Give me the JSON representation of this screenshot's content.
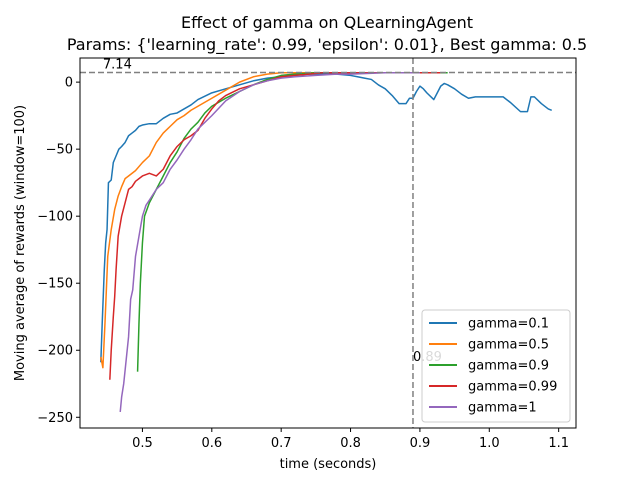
{
  "chart_data": {
    "type": "line",
    "title": "Effect of gamma on QLearningAgent",
    "subtitle": "Params: {'learning_rate': 0.99, 'epsilon': 0.01}, Best gamma: 0.5",
    "xlabel": "time (seconds)",
    "ylabel": "Moving average of rewards (window=100)",
    "xlim": [
      0.41,
      1.125
    ],
    "ylim": [
      -258,
      18
    ],
    "xticks": [
      0.5,
      0.6,
      0.7,
      0.8,
      0.9,
      1.0,
      1.1
    ],
    "xtick_labels": [
      "0.5",
      "0.6",
      "0.7",
      "0.8",
      "0.9",
      "1.0",
      "1.1"
    ],
    "yticks": [
      0,
      -50,
      -100,
      -150,
      -200,
      -250
    ],
    "ytick_labels": [
      "0",
      "−50",
      "−100",
      "−150",
      "−200",
      "−250"
    ],
    "grid": false,
    "legend_position": "lower right",
    "annotations": [
      {
        "type": "hline",
        "value": 7.14,
        "label": "7.14",
        "style": "dashed"
      },
      {
        "type": "vline",
        "value": 0.89,
        "label": "0.89",
        "style": "dashed"
      }
    ],
    "series": [
      {
        "name": "gamma=0.1",
        "color": "#1f77b4",
        "points": [
          [
            0.44,
            -209
          ],
          [
            0.442,
            -180
          ],
          [
            0.445,
            -140
          ],
          [
            0.447,
            -120
          ],
          [
            0.449,
            -110
          ],
          [
            0.451,
            -75
          ],
          [
            0.455,
            -73
          ],
          [
            0.458,
            -60
          ],
          [
            0.462,
            -55
          ],
          [
            0.466,
            -50
          ],
          [
            0.47,
            -48
          ],
          [
            0.475,
            -45
          ],
          [
            0.48,
            -40
          ],
          [
            0.485,
            -38
          ],
          [
            0.49,
            -36
          ],
          [
            0.495,
            -33
          ],
          [
            0.5,
            -32
          ],
          [
            0.51,
            -31
          ],
          [
            0.52,
            -31
          ],
          [
            0.53,
            -27
          ],
          [
            0.54,
            -24
          ],
          [
            0.55,
            -23
          ],
          [
            0.56,
            -20
          ],
          [
            0.57,
            -17
          ],
          [
            0.58,
            -13
          ],
          [
            0.6,
            -8
          ],
          [
            0.62,
            -5
          ],
          [
            0.64,
            -2
          ],
          [
            0.66,
            1
          ],
          [
            0.68,
            3
          ],
          [
            0.7,
            4
          ],
          [
            0.72,
            5
          ],
          [
            0.74,
            6
          ],
          [
            0.76,
            6
          ],
          [
            0.78,
            6
          ],
          [
            0.8,
            5
          ],
          [
            0.81,
            4
          ],
          [
            0.82,
            3
          ],
          [
            0.83,
            2
          ],
          [
            0.84,
            -2
          ],
          [
            0.85,
            -5
          ],
          [
            0.86,
            -10
          ],
          [
            0.87,
            -16
          ],
          [
            0.875,
            -16
          ],
          [
            0.88,
            -16
          ],
          [
            0.885,
            -12
          ],
          [
            0.89,
            -12
          ],
          [
            0.895,
            -7
          ],
          [
            0.9,
            -3
          ],
          [
            0.905,
            -5
          ],
          [
            0.91,
            -8
          ],
          [
            0.92,
            -13
          ],
          [
            0.925,
            -8
          ],
          [
            0.93,
            -3
          ],
          [
            0.935,
            -1
          ],
          [
            0.94,
            -2
          ],
          [
            0.95,
            -5
          ],
          [
            0.96,
            -9
          ],
          [
            0.97,
            -12
          ],
          [
            0.98,
            -11
          ],
          [
            1.0,
            -11
          ],
          [
            1.02,
            -11
          ],
          [
            1.03,
            -15
          ],
          [
            1.045,
            -22
          ],
          [
            1.055,
            -22
          ],
          [
            1.06,
            -11
          ],
          [
            1.065,
            -11
          ],
          [
            1.075,
            -16
          ],
          [
            1.085,
            -20
          ],
          [
            1.09,
            -21
          ]
        ]
      },
      {
        "name": "gamma=0.5",
        "color": "#ff7f0e",
        "points": [
          [
            0.44,
            -205
          ],
          [
            0.443,
            -213
          ],
          [
            0.446,
            -180
          ],
          [
            0.45,
            -130
          ],
          [
            0.455,
            -110
          ],
          [
            0.46,
            -95
          ],
          [
            0.465,
            -85
          ],
          [
            0.47,
            -78
          ],
          [
            0.475,
            -72
          ],
          [
            0.48,
            -70
          ],
          [
            0.49,
            -66
          ],
          [
            0.5,
            -60
          ],
          [
            0.51,
            -55
          ],
          [
            0.52,
            -45
          ],
          [
            0.53,
            -38
          ],
          [
            0.54,
            -33
          ],
          [
            0.55,
            -28
          ],
          [
            0.56,
            -25
          ],
          [
            0.57,
            -21
          ],
          [
            0.58,
            -18
          ],
          [
            0.6,
            -12
          ],
          [
            0.62,
            -6
          ],
          [
            0.64,
            0
          ],
          [
            0.66,
            4
          ],
          [
            0.68,
            6
          ],
          [
            0.7,
            7
          ],
          [
            0.72,
            7
          ],
          [
            0.75,
            7
          ],
          [
            0.8,
            7
          ],
          [
            0.85,
            7
          ],
          [
            0.89,
            7
          ],
          [
            0.91,
            7
          ]
        ]
      },
      {
        "name": "gamma=0.9",
        "color": "#2ca02c",
        "points": [
          [
            0.493,
            -216
          ],
          [
            0.495,
            -180
          ],
          [
            0.497,
            -150
          ],
          [
            0.5,
            -120
          ],
          [
            0.503,
            -100
          ],
          [
            0.51,
            -90
          ],
          [
            0.52,
            -80
          ],
          [
            0.53,
            -70
          ],
          [
            0.54,
            -60
          ],
          [
            0.55,
            -52
          ],
          [
            0.56,
            -42
          ],
          [
            0.57,
            -35
          ],
          [
            0.58,
            -30
          ],
          [
            0.59,
            -23
          ],
          [
            0.6,
            -18
          ],
          [
            0.62,
            -12
          ],
          [
            0.64,
            -7
          ],
          [
            0.66,
            -2
          ],
          [
            0.68,
            2
          ],
          [
            0.7,
            5
          ],
          [
            0.72,
            6
          ],
          [
            0.75,
            7
          ],
          [
            0.8,
            7
          ],
          [
            0.85,
            7
          ],
          [
            0.9,
            7
          ],
          [
            0.92,
            7
          ],
          [
            0.94,
            7
          ]
        ]
      },
      {
        "name": "gamma=0.99",
        "color": "#d62728",
        "points": [
          [
            0.453,
            -222
          ],
          [
            0.455,
            -200
          ],
          [
            0.458,
            -175
          ],
          [
            0.46,
            -160
          ],
          [
            0.462,
            -140
          ],
          [
            0.465,
            -115
          ],
          [
            0.47,
            -100
          ],
          [
            0.475,
            -90
          ],
          [
            0.48,
            -80
          ],
          [
            0.485,
            -78
          ],
          [
            0.49,
            -74
          ],
          [
            0.5,
            -70
          ],
          [
            0.51,
            -68
          ],
          [
            0.52,
            -70
          ],
          [
            0.53,
            -65
          ],
          [
            0.54,
            -55
          ],
          [
            0.55,
            -48
          ],
          [
            0.56,
            -43
          ],
          [
            0.57,
            -40
          ],
          [
            0.58,
            -36
          ],
          [
            0.59,
            -27
          ],
          [
            0.6,
            -20
          ],
          [
            0.61,
            -14
          ],
          [
            0.62,
            -10
          ],
          [
            0.64,
            -5
          ],
          [
            0.66,
            -2
          ],
          [
            0.68,
            1
          ],
          [
            0.7,
            4
          ],
          [
            0.72,
            5
          ],
          [
            0.74,
            6
          ],
          [
            0.76,
            7
          ],
          [
            0.8,
            7
          ],
          [
            0.85,
            7
          ],
          [
            0.9,
            7
          ],
          [
            0.93,
            7
          ]
        ]
      },
      {
        "name": "gamma=1",
        "color": "#9467bd",
        "points": [
          [
            0.468,
            -246
          ],
          [
            0.47,
            -235
          ],
          [
            0.473,
            -225
          ],
          [
            0.476,
            -210
          ],
          [
            0.48,
            -190
          ],
          [
            0.483,
            -162
          ],
          [
            0.486,
            -155
          ],
          [
            0.49,
            -130
          ],
          [
            0.495,
            -115
          ],
          [
            0.5,
            -100
          ],
          [
            0.505,
            -92
          ],
          [
            0.51,
            -88
          ],
          [
            0.52,
            -80
          ],
          [
            0.53,
            -75
          ],
          [
            0.54,
            -65
          ],
          [
            0.55,
            -58
          ],
          [
            0.56,
            -50
          ],
          [
            0.57,
            -43
          ],
          [
            0.58,
            -35
          ],
          [
            0.6,
            -25
          ],
          [
            0.62,
            -14
          ],
          [
            0.64,
            -7
          ],
          [
            0.66,
            -2
          ],
          [
            0.68,
            1
          ],
          [
            0.7,
            3
          ],
          [
            0.72,
            4
          ],
          [
            0.75,
            5
          ],
          [
            0.78,
            6
          ],
          [
            0.8,
            6
          ],
          [
            0.85,
            7
          ],
          [
            0.9,
            7
          ]
        ]
      }
    ]
  }
}
